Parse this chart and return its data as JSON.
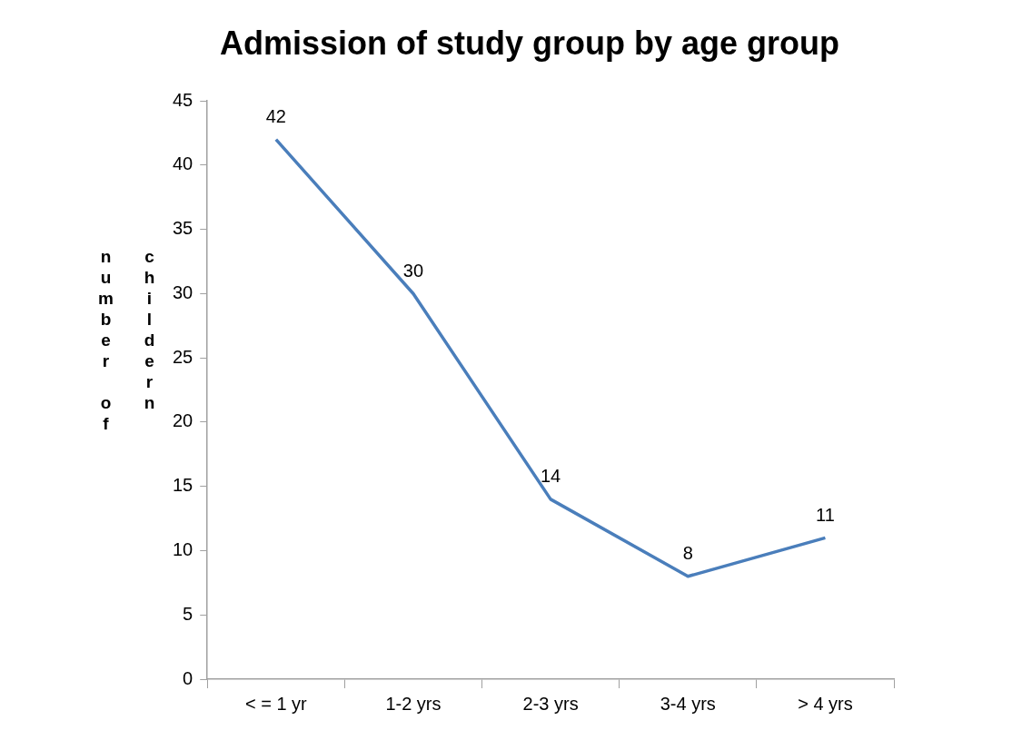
{
  "chart_data": {
    "type": "line",
    "title": "Admission of study group by age group",
    "ylabel": "number of childern",
    "categories": [
      "< = 1 yr",
      "1-2 yrs",
      "2-3 yrs",
      "3-4 yrs",
      "> 4 yrs"
    ],
    "series": [
      {
        "color": "#4a7ebb",
        "values": [
          42,
          30,
          14,
          8,
          11
        ]
      }
    ],
    "ylim": [
      0,
      45
    ],
    "yticks": [
      0,
      5,
      10,
      15,
      20,
      25,
      30,
      35,
      40,
      45
    ],
    "grid": false,
    "legend": false,
    "marker": "none",
    "data_labels": true
  }
}
